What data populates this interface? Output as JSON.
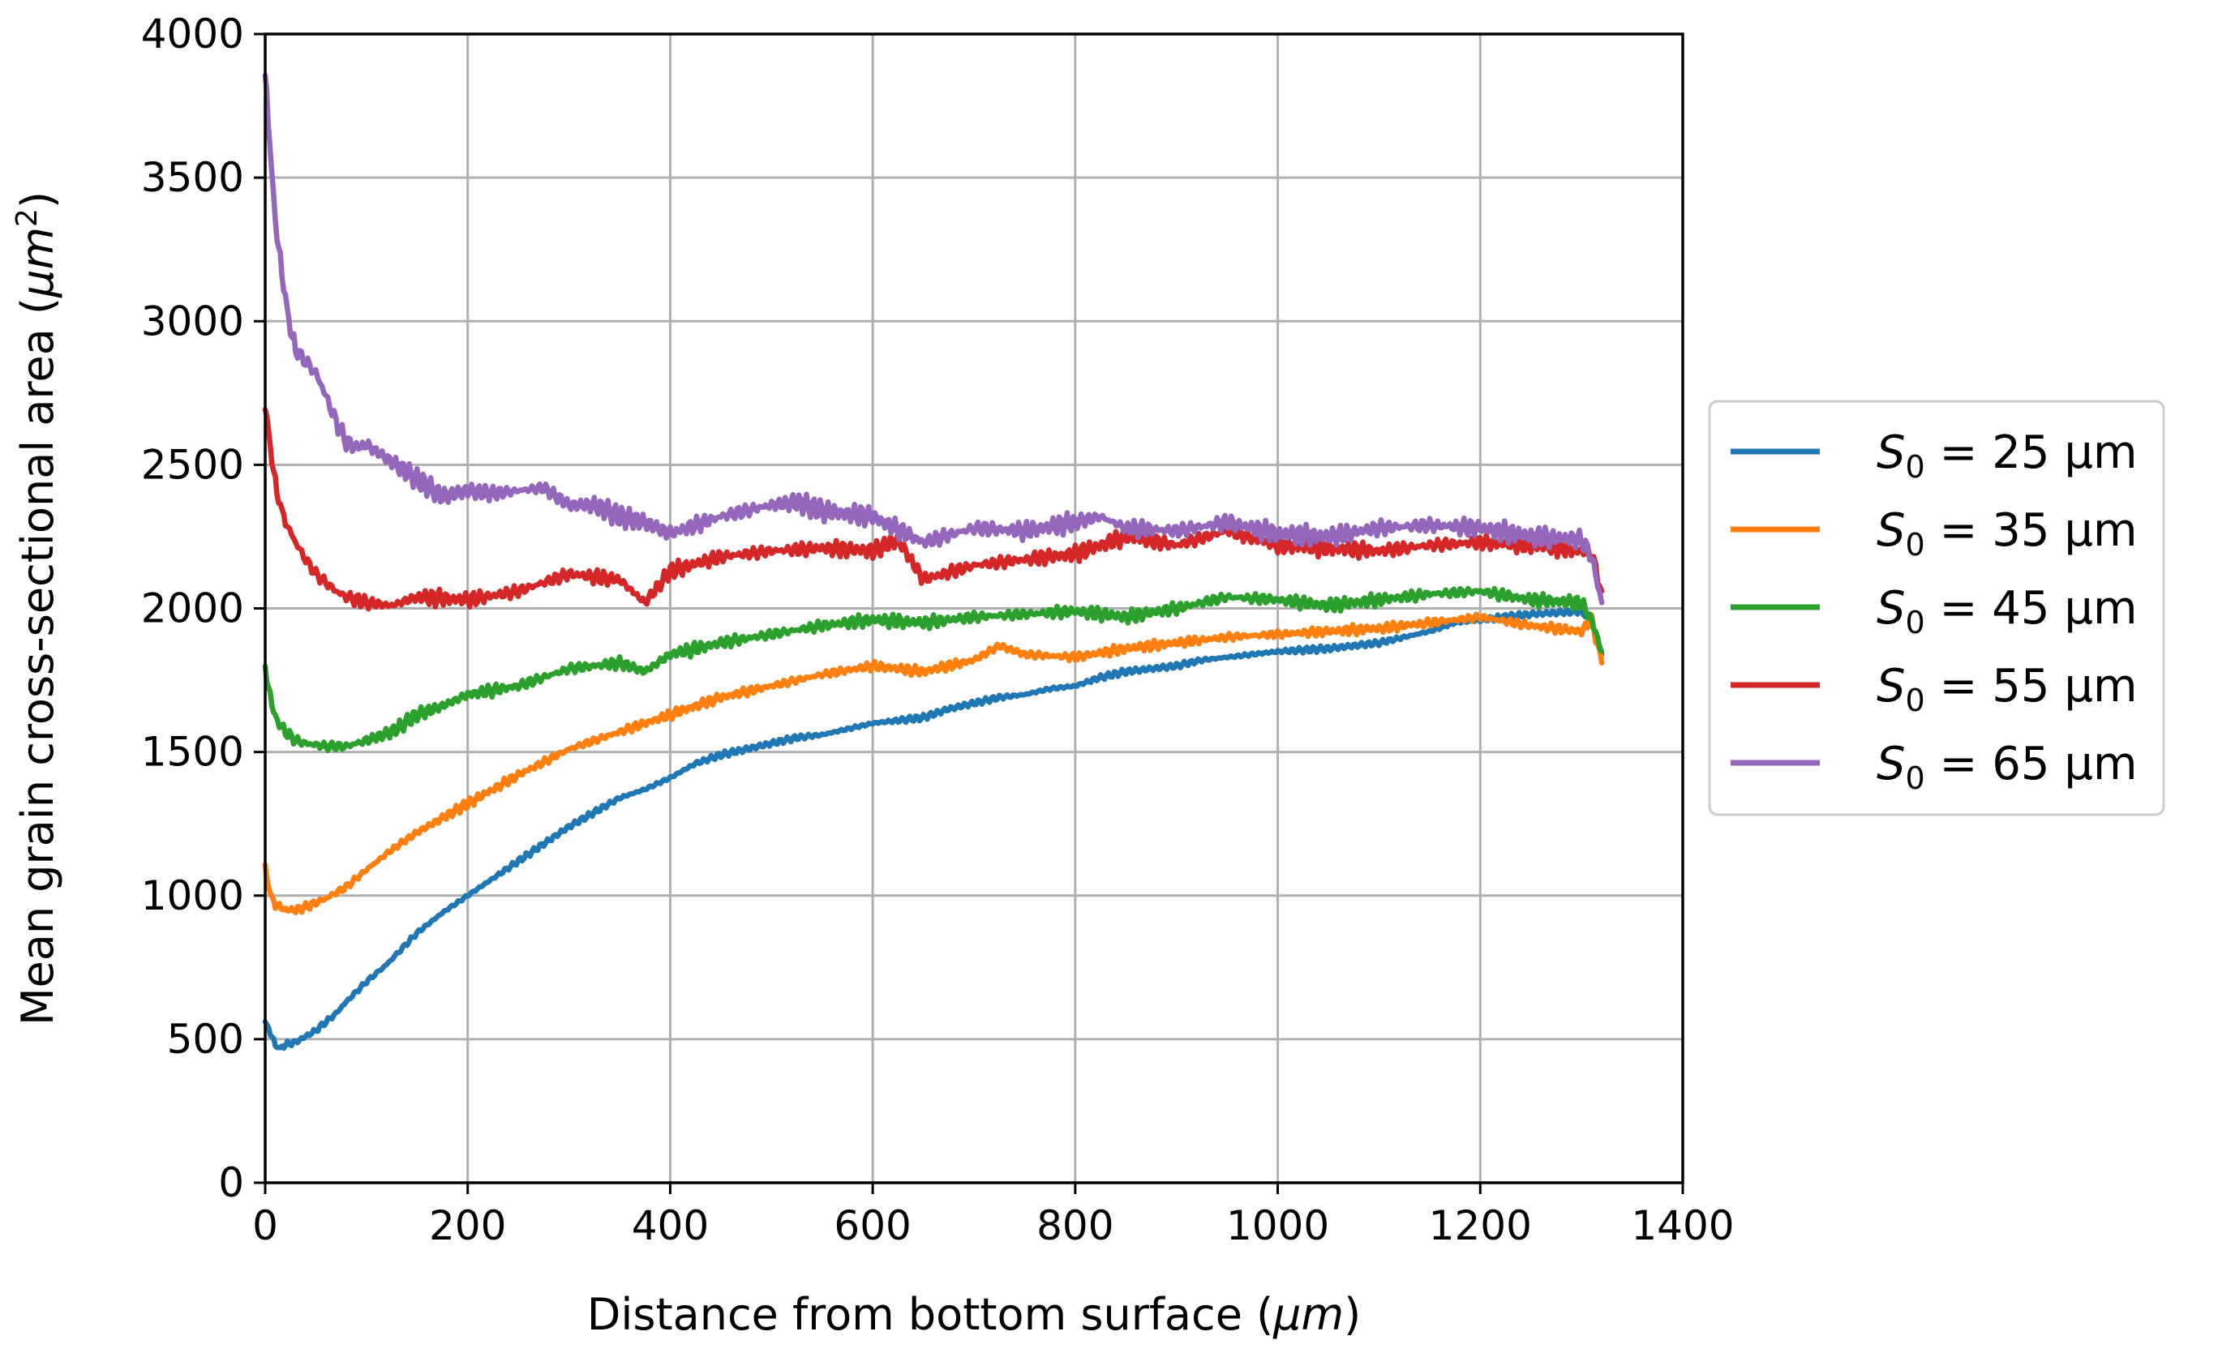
{
  "chart_data": {
    "type": "line",
    "title": "",
    "xlabel_main": "Distance from bottom surface (",
    "xlabel_unit": "μm",
    "xlabel_close": ")",
    "ylabel_main": "Mean grain cross-sectional area (",
    "ylabel_unit": "μm",
    "ylabel_exp": "2",
    "ylabel_close": ")",
    "xlim": [
      0,
      1400
    ],
    "ylim": [
      0,
      4000
    ],
    "xticks": [
      0,
      200,
      400,
      600,
      800,
      1000,
      1200,
      1400
    ],
    "yticks": [
      0,
      500,
      1000,
      1500,
      2000,
      2500,
      3000,
      3500,
      4000
    ],
    "grid": true,
    "legend_position": "outside-right",
    "series": [
      {
        "name": "S0 = 25 μm",
        "legend": {
          "symbol": "S",
          "sub": "0",
          "text": " = 25 μm"
        },
        "color": "#1f77b4",
        "x": [
          0,
          5,
          10,
          15,
          20,
          30,
          40,
          50,
          60,
          70,
          80,
          100,
          120,
          150,
          175,
          200,
          225,
          250,
          275,
          300,
          325,
          350,
          375,
          400,
          425,
          450,
          475,
          500,
          525,
          550,
          575,
          600,
          625,
          650,
          675,
          700,
          725,
          750,
          775,
          800,
          825,
          850,
          875,
          900,
          925,
          950,
          975,
          1000,
          1025,
          1050,
          1075,
          1100,
          1125,
          1150,
          1175,
          1200,
          1225,
          1250,
          1275,
          1300,
          1310,
          1320
        ],
        "y": [
          560,
          520,
          480,
          470,
          480,
          490,
          510,
          530,
          560,
          590,
          630,
          700,
          760,
          870,
          940,
          1000,
          1060,
          1120,
          1180,
          1240,
          1290,
          1340,
          1370,
          1410,
          1460,
          1490,
          1510,
          1530,
          1550,
          1560,
          1580,
          1600,
          1610,
          1620,
          1650,
          1670,
          1690,
          1700,
          1720,
          1730,
          1760,
          1780,
          1790,
          1800,
          1820,
          1830,
          1840,
          1850,
          1855,
          1860,
          1870,
          1880,
          1900,
          1920,
          1950,
          1960,
          1970,
          1980,
          1985,
          1990,
          1950,
          1840
        ]
      },
      {
        "name": "S0 = 35 μm",
        "legend": {
          "symbol": "S",
          "sub": "0",
          "text": " = 35 μm"
        },
        "color": "#ff7f0e",
        "x": [
          0,
          5,
          10,
          20,
          30,
          40,
          60,
          80,
          100,
          125,
          150,
          175,
          200,
          250,
          300,
          350,
          400,
          450,
          500,
          550,
          600,
          650,
          700,
          725,
          750,
          800,
          850,
          900,
          950,
          1000,
          1050,
          1100,
          1150,
          1200,
          1250,
          1300,
          1310,
          1320
        ],
        "y": [
          1090,
          1010,
          970,
          950,
          950,
          960,
          990,
          1030,
          1090,
          1160,
          1220,
          1270,
          1320,
          1420,
          1510,
          1570,
          1630,
          1690,
          1730,
          1770,
          1800,
          1780,
          1820,
          1870,
          1840,
          1830,
          1860,
          1880,
          1900,
          1910,
          1920,
          1930,
          1950,
          1970,
          1940,
          1920,
          1960,
          1810
        ]
      },
      {
        "name": "S0 = 45 μm",
        "legend": {
          "symbol": "S",
          "sub": "0",
          "text": " = 45 μm"
        },
        "color": "#2ca02c",
        "x": [
          0,
          5,
          10,
          20,
          30,
          40,
          60,
          80,
          100,
          125,
          150,
          175,
          200,
          250,
          300,
          350,
          375,
          400,
          450,
          500,
          550,
          600,
          650,
          700,
          750,
          800,
          850,
          900,
          950,
          1000,
          1050,
          1100,
          1150,
          1200,
          1250,
          1300,
          1310,
          1320
        ],
        "y": [
          1800,
          1690,
          1620,
          1570,
          1540,
          1530,
          1520,
          1520,
          1540,
          1570,
          1630,
          1660,
          1700,
          1730,
          1790,
          1810,
          1780,
          1840,
          1880,
          1910,
          1940,
          1960,
          1950,
          1970,
          1980,
          1990,
          1970,
          2000,
          2040,
          2030,
          2010,
          2030,
          2050,
          2060,
          2030,
          2020,
          1960,
          1850
        ]
      },
      {
        "name": "S0 = 55 μm",
        "legend": {
          "symbol": "S",
          "sub": "0",
          "text": " = 55 μm"
        },
        "color": "#d62728",
        "x": [
          0,
          5,
          10,
          15,
          20,
          30,
          40,
          50,
          60,
          70,
          80,
          100,
          125,
          150,
          200,
          250,
          300,
          350,
          375,
          400,
          450,
          500,
          550,
          600,
          625,
          650,
          700,
          750,
          800,
          850,
          900,
          950,
          1000,
          1050,
          1100,
          1150,
          1200,
          1250,
          1300,
          1310,
          1320
        ],
        "y": [
          2700,
          2560,
          2440,
          2360,
          2300,
          2230,
          2170,
          2120,
          2090,
          2060,
          2040,
          2020,
          2010,
          2040,
          2030,
          2060,
          2120,
          2100,
          2020,
          2130,
          2180,
          2200,
          2210,
          2200,
          2240,
          2100,
          2150,
          2170,
          2190,
          2250,
          2220,
          2270,
          2220,
          2210,
          2200,
          2220,
          2230,
          2220,
          2200,
          2190,
          2060
        ]
      },
      {
        "name": "S0 = 65 μm",
        "legend": {
          "symbol": "S",
          "sub": "0",
          "text": " = 65 μm"
        },
        "color": "#9467bd",
        "x": [
          0,
          3,
          6,
          10,
          15,
          20,
          25,
          30,
          40,
          50,
          60,
          70,
          80,
          90,
          100,
          125,
          150,
          175,
          200,
          225,
          250,
          275,
          300,
          325,
          350,
          375,
          400,
          450,
          500,
          525,
          550,
          600,
          650,
          700,
          750,
          800,
          825,
          850,
          900,
          950,
          1000,
          1050,
          1100,
          1150,
          1200,
          1250,
          1300,
          1310,
          1320
        ],
        "y": [
          3850,
          3700,
          3550,
          3350,
          3200,
          3080,
          2980,
          2900,
          2860,
          2820,
          2740,
          2650,
          2580,
          2560,
          2570,
          2510,
          2450,
          2390,
          2410,
          2400,
          2410,
          2420,
          2360,
          2360,
          2320,
          2300,
          2260,
          2320,
          2360,
          2370,
          2340,
          2320,
          2230,
          2280,
          2270,
          2300,
          2320,
          2280,
          2270,
          2300,
          2260,
          2250,
          2280,
          2290,
          2280,
          2250,
          2240,
          2180,
          2020
        ]
      }
    ]
  }
}
